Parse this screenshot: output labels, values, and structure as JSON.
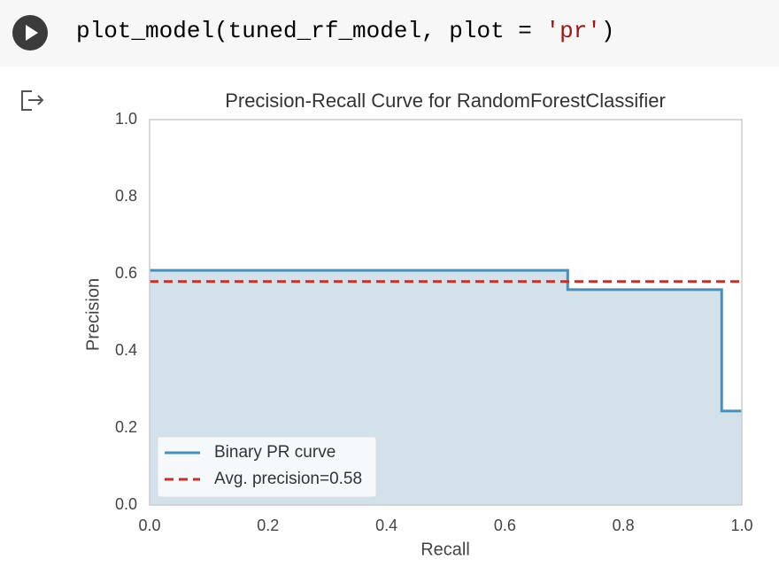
{
  "cell": {
    "code": [
      "plot_model(tuned_rf_model, plot = ",
      "'pr'",
      ")"
    ]
  },
  "chart_data": {
    "type": "step",
    "title": "Precision-Recall Curve for RandomForestClassifier",
    "x_label": "Recall",
    "y_label": "Precision",
    "xlim": [
      0,
      1
    ],
    "ylim": [
      0,
      1
    ],
    "xticks": [
      {
        "value": 0,
        "label": "0.0"
      },
      0.2,
      0.4,
      0.6,
      0.8,
      {
        "value": 1,
        "label": "1.0"
      }
    ],
    "yticks": [
      {
        "value": 0,
        "label": "0.0"
      },
      0.2,
      0.4,
      0.6,
      0.8,
      {
        "value": 1,
        "label": "1.0"
      }
    ],
    "grid": false,
    "legend": "lower left",
    "fill_color": "#d2e1ea",
    "series": [
      {
        "name": "Binary PR curve",
        "color": "#4a8fb8",
        "x": [
          0,
          0.706,
          0.706,
          0.966,
          0.966,
          1.0
        ],
        "values": [
          0.609,
          0.609,
          0.559,
          0.559,
          0.244,
          0.244
        ]
      },
      {
        "name": "Avg. precision=0.58",
        "color": "#c0342c",
        "value": 0.58
      }
    ]
  }
}
